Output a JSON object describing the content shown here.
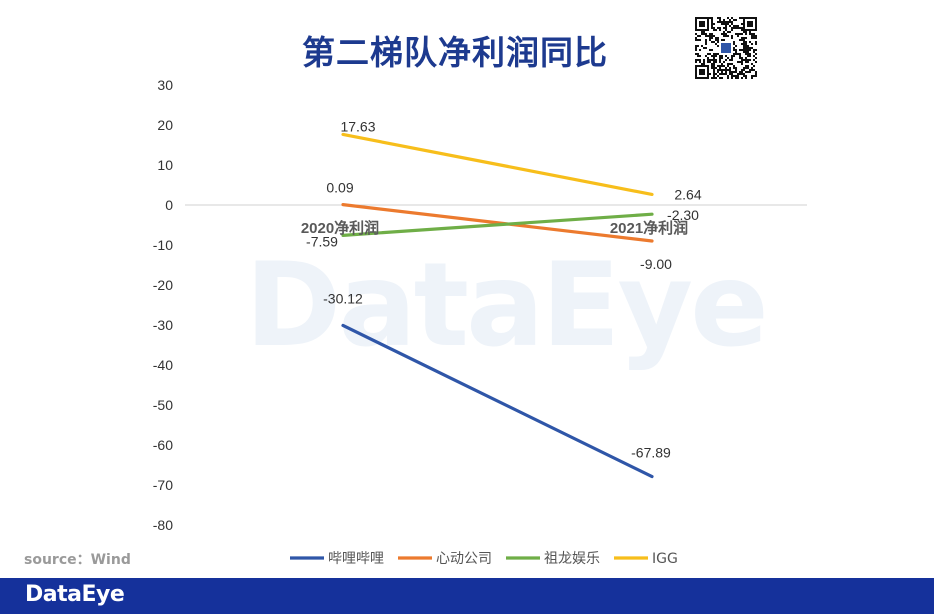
{
  "title": "第二梯队净利润同比",
  "source": "source：Wind",
  "brand": "DataEye",
  "watermark": "DataEye",
  "chart_data": {
    "type": "line",
    "title": "第二梯队净利润同比",
    "categories": [
      "2020净利润",
      "2021净利润"
    ],
    "ylim": [
      -80,
      30
    ],
    "yticks": [
      30,
      20,
      10,
      0,
      -10,
      -20,
      -30,
      -40,
      -50,
      -60,
      -70,
      -80
    ],
    "grid": false,
    "legend_position": "bottom",
    "series": [
      {
        "name": "哔哩哔哩",
        "color": "#2f56a8",
        "values": [
          -30.12,
          -67.89
        ],
        "labels": [
          "-30.12",
          "-67.89"
        ]
      },
      {
        "name": "心动公司",
        "color": "#ec7a2e",
        "values": [
          0.09,
          -9.0
        ],
        "labels": [
          "0.09",
          "-9.00"
        ]
      },
      {
        "name": "祖龙娱乐",
        "color": "#6fae47",
        "values": [
          -7.59,
          -2.3
        ],
        "labels": [
          "-7.59",
          "-2.30"
        ]
      },
      {
        "name": "IGG",
        "color": "#f7be1b",
        "values": [
          17.63,
          2.64
        ],
        "labels": [
          "17.63",
          "2.64"
        ]
      }
    ]
  }
}
